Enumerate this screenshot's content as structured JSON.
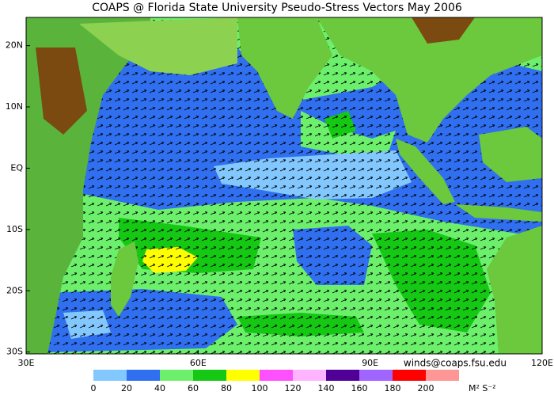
{
  "title": "COAPS @ Florida State University Pseudo-Stress Vectors May 2006",
  "credit": "winds@coaps.fsu.edu",
  "map": {
    "lonlim": [
      30,
      120
    ],
    "latlim": [
      -30.3,
      24.6
    ],
    "lon_ticks": [
      {
        "value": 30,
        "label": "30E"
      },
      {
        "value": 60,
        "label": "60E"
      },
      {
        "value": 90,
        "label": "90E"
      },
      {
        "value": 120,
        "label": "120E"
      }
    ],
    "lat_ticks": [
      {
        "value": 20,
        "label": "20N"
      },
      {
        "value": 10,
        "label": "10N"
      },
      {
        "value": 0,
        "label": "EQ"
      },
      {
        "value": -10,
        "label": "10S"
      },
      {
        "value": -20,
        "label": "20S"
      },
      {
        "value": -30,
        "label": "30S"
      }
    ]
  },
  "colorbar": {
    "ticks": [
      0,
      20,
      40,
      60,
      80,
      100,
      120,
      140,
      160,
      180,
      200
    ],
    "colors": [
      "#82c8ff",
      "#2f6ff0",
      "#6cf06c",
      "#14c814",
      "#ffff00",
      "#ff50ff",
      "#ffb4ff",
      "#500096",
      "#a064ff",
      "#ff0000",
      "#ff9696"
    ],
    "unit": "M² S⁻²"
  }
}
